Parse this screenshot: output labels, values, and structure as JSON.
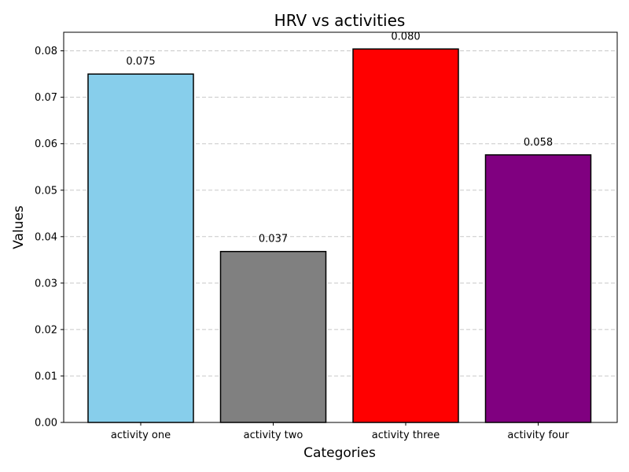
{
  "chart_data": {
    "type": "bar",
    "title": "HRV vs activities",
    "xlabel": "Categories",
    "ylabel": "Values",
    "categories": [
      "activity one",
      "activity two",
      "activity three",
      "activity four"
    ],
    "values": [
      0.075,
      0.0368,
      0.0804,
      0.0576
    ],
    "data_labels": [
      "0.075",
      "0.037",
      "0.080",
      "0.058"
    ],
    "colors": [
      "#87ceeb",
      "#808080",
      "#ff0000",
      "#800080"
    ],
    "ylim": [
      0,
      0.084
    ],
    "yticks": [
      0.0,
      0.01,
      0.02,
      0.03,
      0.04,
      0.05,
      0.06,
      0.07,
      0.08
    ],
    "ytick_labels": [
      "0.00",
      "0.01",
      "0.02",
      "0.03",
      "0.04",
      "0.05",
      "0.06",
      "0.07",
      "0.08"
    ],
    "grid": true
  }
}
